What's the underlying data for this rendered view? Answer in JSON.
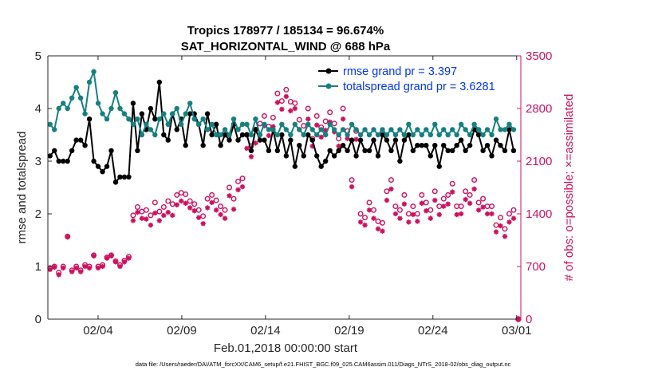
{
  "chart_data": {
    "type": "line",
    "title": "Tropics 178977 / 185134 = 96.674%",
    "subtitle": "SAT_HORIZONTAL_WIND @ 688 hPa",
    "xlabel": "Feb.01,2018 00:00:00 start",
    "ylabel": "rmse and totalspread",
    "y2label": "# of obs: o=possible; ×=assimilated",
    "footnote": "data file: /Users/raeder/DAI/ATM_forcXX/CAM6_setup/f.e21.FHIST_BGC.f09_025.CAM6assim.011/Diags_NTrS_2018-02/obs_diag_output.nc",
    "xlim": [
      1.0,
      29.25
    ],
    "ylim": [
      0,
      5
    ],
    "y2lim": [
      0,
      3500
    ],
    "xticks": [
      {
        "value": 4,
        "label": "02/04"
      },
      {
        "value": 9,
        "label": "02/09"
      },
      {
        "value": 14,
        "label": "02/14"
      },
      {
        "value": 19,
        "label": "02/19"
      },
      {
        "value": 24,
        "label": "02/24"
      },
      {
        "value": 29,
        "label": "03/01"
      }
    ],
    "yticks": [
      "0",
      "1",
      "2",
      "3",
      "4",
      "5"
    ],
    "y2ticks": [
      "0",
      "700",
      "1400",
      "2100",
      "2800",
      "3500"
    ],
    "colors": {
      "rmse": "#000000",
      "spread": "#168080",
      "obs": "#cc1160",
      "axis2": "#cc1160",
      "legend_text": "#0033ff"
    },
    "legend_position": "top-right",
    "series": [
      {
        "name": "rmse",
        "legend": "rmse grand pr = 3.397",
        "axis": "left",
        "values": [
          3.1,
          3.2,
          3.0,
          3.0,
          3.0,
          3.2,
          3.4,
          3.4,
          3.3,
          3.8,
          3.0,
          2.9,
          2.8,
          2.9,
          3.2,
          2.6,
          2.7,
          2.7,
          2.7,
          4.1,
          3.2,
          3.9,
          3.6,
          4.0,
          3.8,
          4.5,
          3.5,
          3.4,
          3.9,
          3.6,
          3.8,
          3.3,
          3.9,
          3.9,
          3.7,
          3.3,
          3.9,
          3.5,
          3.7,
          3.3,
          3.5,
          3.4,
          3.7,
          3.4,
          3.5,
          3.5,
          3.2,
          3.6,
          3.4,
          3.4,
          3.2,
          3.6,
          3.2,
          3.5,
          3.1,
          3.4,
          2.9,
          3.3,
          3.1,
          3.5,
          3.4,
          3.1,
          2.9,
          3.0,
          3.2,
          3.1,
          3.2,
          3.3,
          3.2,
          3.4,
          3.1,
          3.4,
          3.2,
          3.2,
          3.4,
          3.1,
          3.5,
          3.4,
          3.2,
          3.4,
          3.0,
          3.4,
          3.5,
          3.2,
          3.3,
          3.3,
          3.3,
          3.1,
          3.3,
          2.9,
          3.3,
          3.2,
          3.2,
          3.3,
          3.4,
          3.2,
          3.3,
          3.6,
          3.5,
          3.2,
          3.3,
          3.1,
          3.4,
          3.3,
          3.2,
          3.6,
          3.2
        ]
      },
      {
        "name": "totalspread",
        "legend": "totalspread grand pr = 3.6281",
        "axis": "left",
        "values": [
          3.7,
          3.6,
          4.0,
          4.1,
          4.0,
          4.2,
          4.4,
          4.2,
          3.9,
          4.5,
          4.7,
          4.1,
          3.9,
          3.8,
          4.0,
          4.3,
          4.0,
          3.9,
          3.8,
          3.7,
          3.8,
          3.5,
          3.7,
          3.6,
          3.5,
          3.8,
          3.9,
          3.7,
          3.9,
          4.0,
          3.7,
          3.9,
          4.1,
          3.8,
          3.7,
          3.8,
          3.6,
          3.7,
          3.5,
          3.5,
          3.6,
          3.5,
          3.8,
          3.6,
          3.7,
          3.7,
          3.5,
          3.8,
          3.5,
          3.7,
          3.6,
          3.6,
          3.5,
          3.7,
          3.6,
          3.5,
          3.7,
          3.6,
          3.5,
          3.7,
          3.6,
          3.5,
          3.6,
          3.5,
          3.7,
          3.6,
          3.5,
          3.6,
          3.5,
          3.7,
          3.6,
          3.5,
          3.6,
          3.5,
          3.6,
          3.5,
          3.6,
          3.5,
          3.6,
          3.5,
          3.6,
          3.5,
          3.7,
          3.5,
          3.6,
          3.5,
          3.6,
          3.5,
          3.7,
          3.5,
          3.6,
          3.5,
          3.6,
          3.5,
          3.7,
          3.6,
          3.5,
          3.7,
          3.6,
          3.5,
          3.6,
          3.5,
          3.8,
          3.6,
          3.6,
          3.7,
          3.6
        ]
      },
      {
        "name": "obs_possible",
        "axis": "right",
        "marker": "circle",
        "values": [
          680,
          700,
          620,
          700,
          1100,
          650,
          700,
          650,
          720,
          700,
          850,
          700,
          720,
          820,
          850,
          770,
          720,
          780,
          830,
          1380,
          1490,
          1430,
          1450,
          1380,
          1550,
          1430,
          1490,
          1570,
          1530,
          1650,
          1680,
          1660,
          1570,
          1530,
          1450,
          1370,
          1600,
          1650,
          1580,
          1500,
          1450,
          1750,
          1600,
          1830,
          1870,
          2450,
          2300,
          2520,
          2600,
          2700,
          2560,
          2680,
          3000,
          2900,
          3050,
          2890,
          2870,
          2650,
          2570,
          2800,
          2400,
          2700,
          2550,
          2630,
          2750,
          2600,
          2400,
          2800,
          2500,
          1850,
          2500,
          1400,
          1350,
          1550,
          1450,
          1300,
          1280,
          1700,
          1850,
          1500,
          1450,
          1650,
          1400,
          1500,
          1400,
          1650,
          1550,
          1450,
          1700,
          1500,
          1600,
          1650,
          1800,
          1500,
          1500,
          1700,
          1650,
          1850,
          1550,
          1600,
          1500,
          1500,
          1250,
          1350,
          1200,
          1400,
          1450
        ]
      },
      {
        "name": "obs_assimilated",
        "axis": "right",
        "marker": "asterisk",
        "values": [
          660,
          690,
          590,
          680,
          1090,
          630,
          680,
          630,
          700,
          680,
          840,
          680,
          700,
          810,
          840,
          760,
          700,
          760,
          810,
          1310,
          1420,
          1340,
          1330,
          1250,
          1410,
          1310,
          1380,
          1420,
          1380,
          1520,
          1570,
          1540,
          1480,
          1440,
          1350,
          1270,
          1480,
          1550,
          1450,
          1390,
          1340,
          1640,
          1460,
          1720,
          1760,
          2270,
          2160,
          2340,
          2450,
          2570,
          2440,
          2560,
          2880,
          2790,
          2960,
          2770,
          2800,
          2520,
          2450,
          2660,
          2300,
          2580,
          2420,
          2510,
          2620,
          2490,
          2300,
          2660,
          2400,
          1760,
          2390,
          1290,
          1250,
          1450,
          1340,
          1200,
          1170,
          1580,
          1730,
          1400,
          1340,
          1530,
          1290,
          1390,
          1300,
          1540,
          1440,
          1340,
          1580,
          1390,
          1500,
          1530,
          1690,
          1390,
          1400,
          1590,
          1540,
          1730,
          1450,
          1490,
          1400,
          1400,
          1160,
          1240,
          1100,
          1290,
          1340
        ]
      }
    ]
  }
}
